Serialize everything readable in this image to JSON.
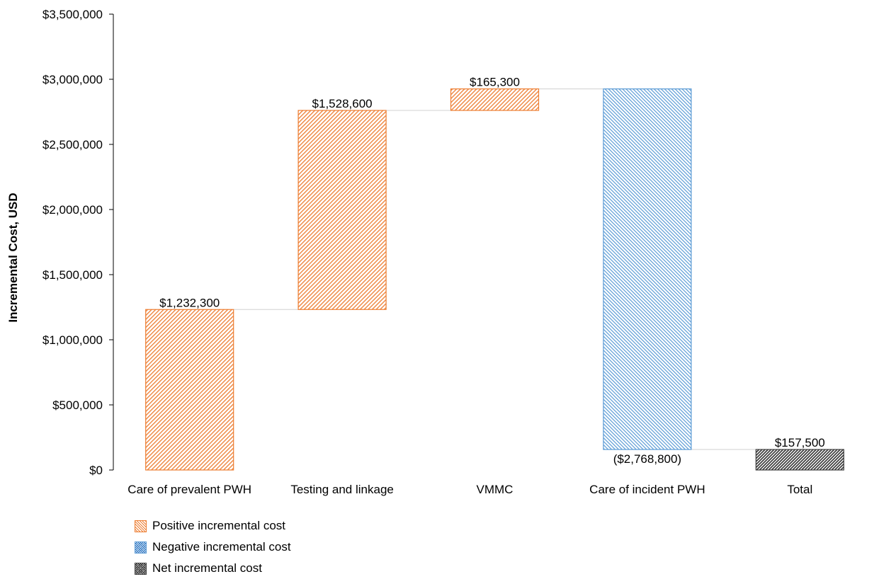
{
  "chart_data": {
    "type": "bar",
    "subtype": "waterfall",
    "ylabel": "Incremental Cost, USD",
    "xlabel": "",
    "ylim": [
      0,
      3500000
    ],
    "y_ticks": [
      0,
      500000,
      1000000,
      1500000,
      2000000,
      2500000,
      3000000,
      3500000
    ],
    "y_tick_labels": [
      "$0",
      "$500,000",
      "$1,000,000",
      "$1,500,000",
      "$2,000,000",
      "$2,500,000",
      "$3,000,000",
      "$3,500,000"
    ],
    "grid": false,
    "legend_position": "bottom-left",
    "categories": [
      "Care of prevalent PWH",
      "Testing and linkage",
      "VMMC",
      "Care of incident PWH",
      "Total"
    ],
    "values": [
      1232300,
      1528600,
      165300,
      -2768800,
      157500
    ],
    "bar_kinds": [
      "positive",
      "positive",
      "positive",
      "negative",
      "net"
    ],
    "data_labels": [
      "$1,232,300",
      "$1,528,600",
      "$165,300",
      "($2,768,800)",
      "$157,500"
    ],
    "legend": [
      {
        "kind": "positive",
        "label": "Positive incremental cost"
      },
      {
        "kind": "negative",
        "label": "Negative incremental cost"
      },
      {
        "kind": "net",
        "label": "Net incremental cost"
      }
    ],
    "colors": {
      "positive": "#ed7d31",
      "negative": "#5b9bd5",
      "net": "#404040"
    }
  }
}
